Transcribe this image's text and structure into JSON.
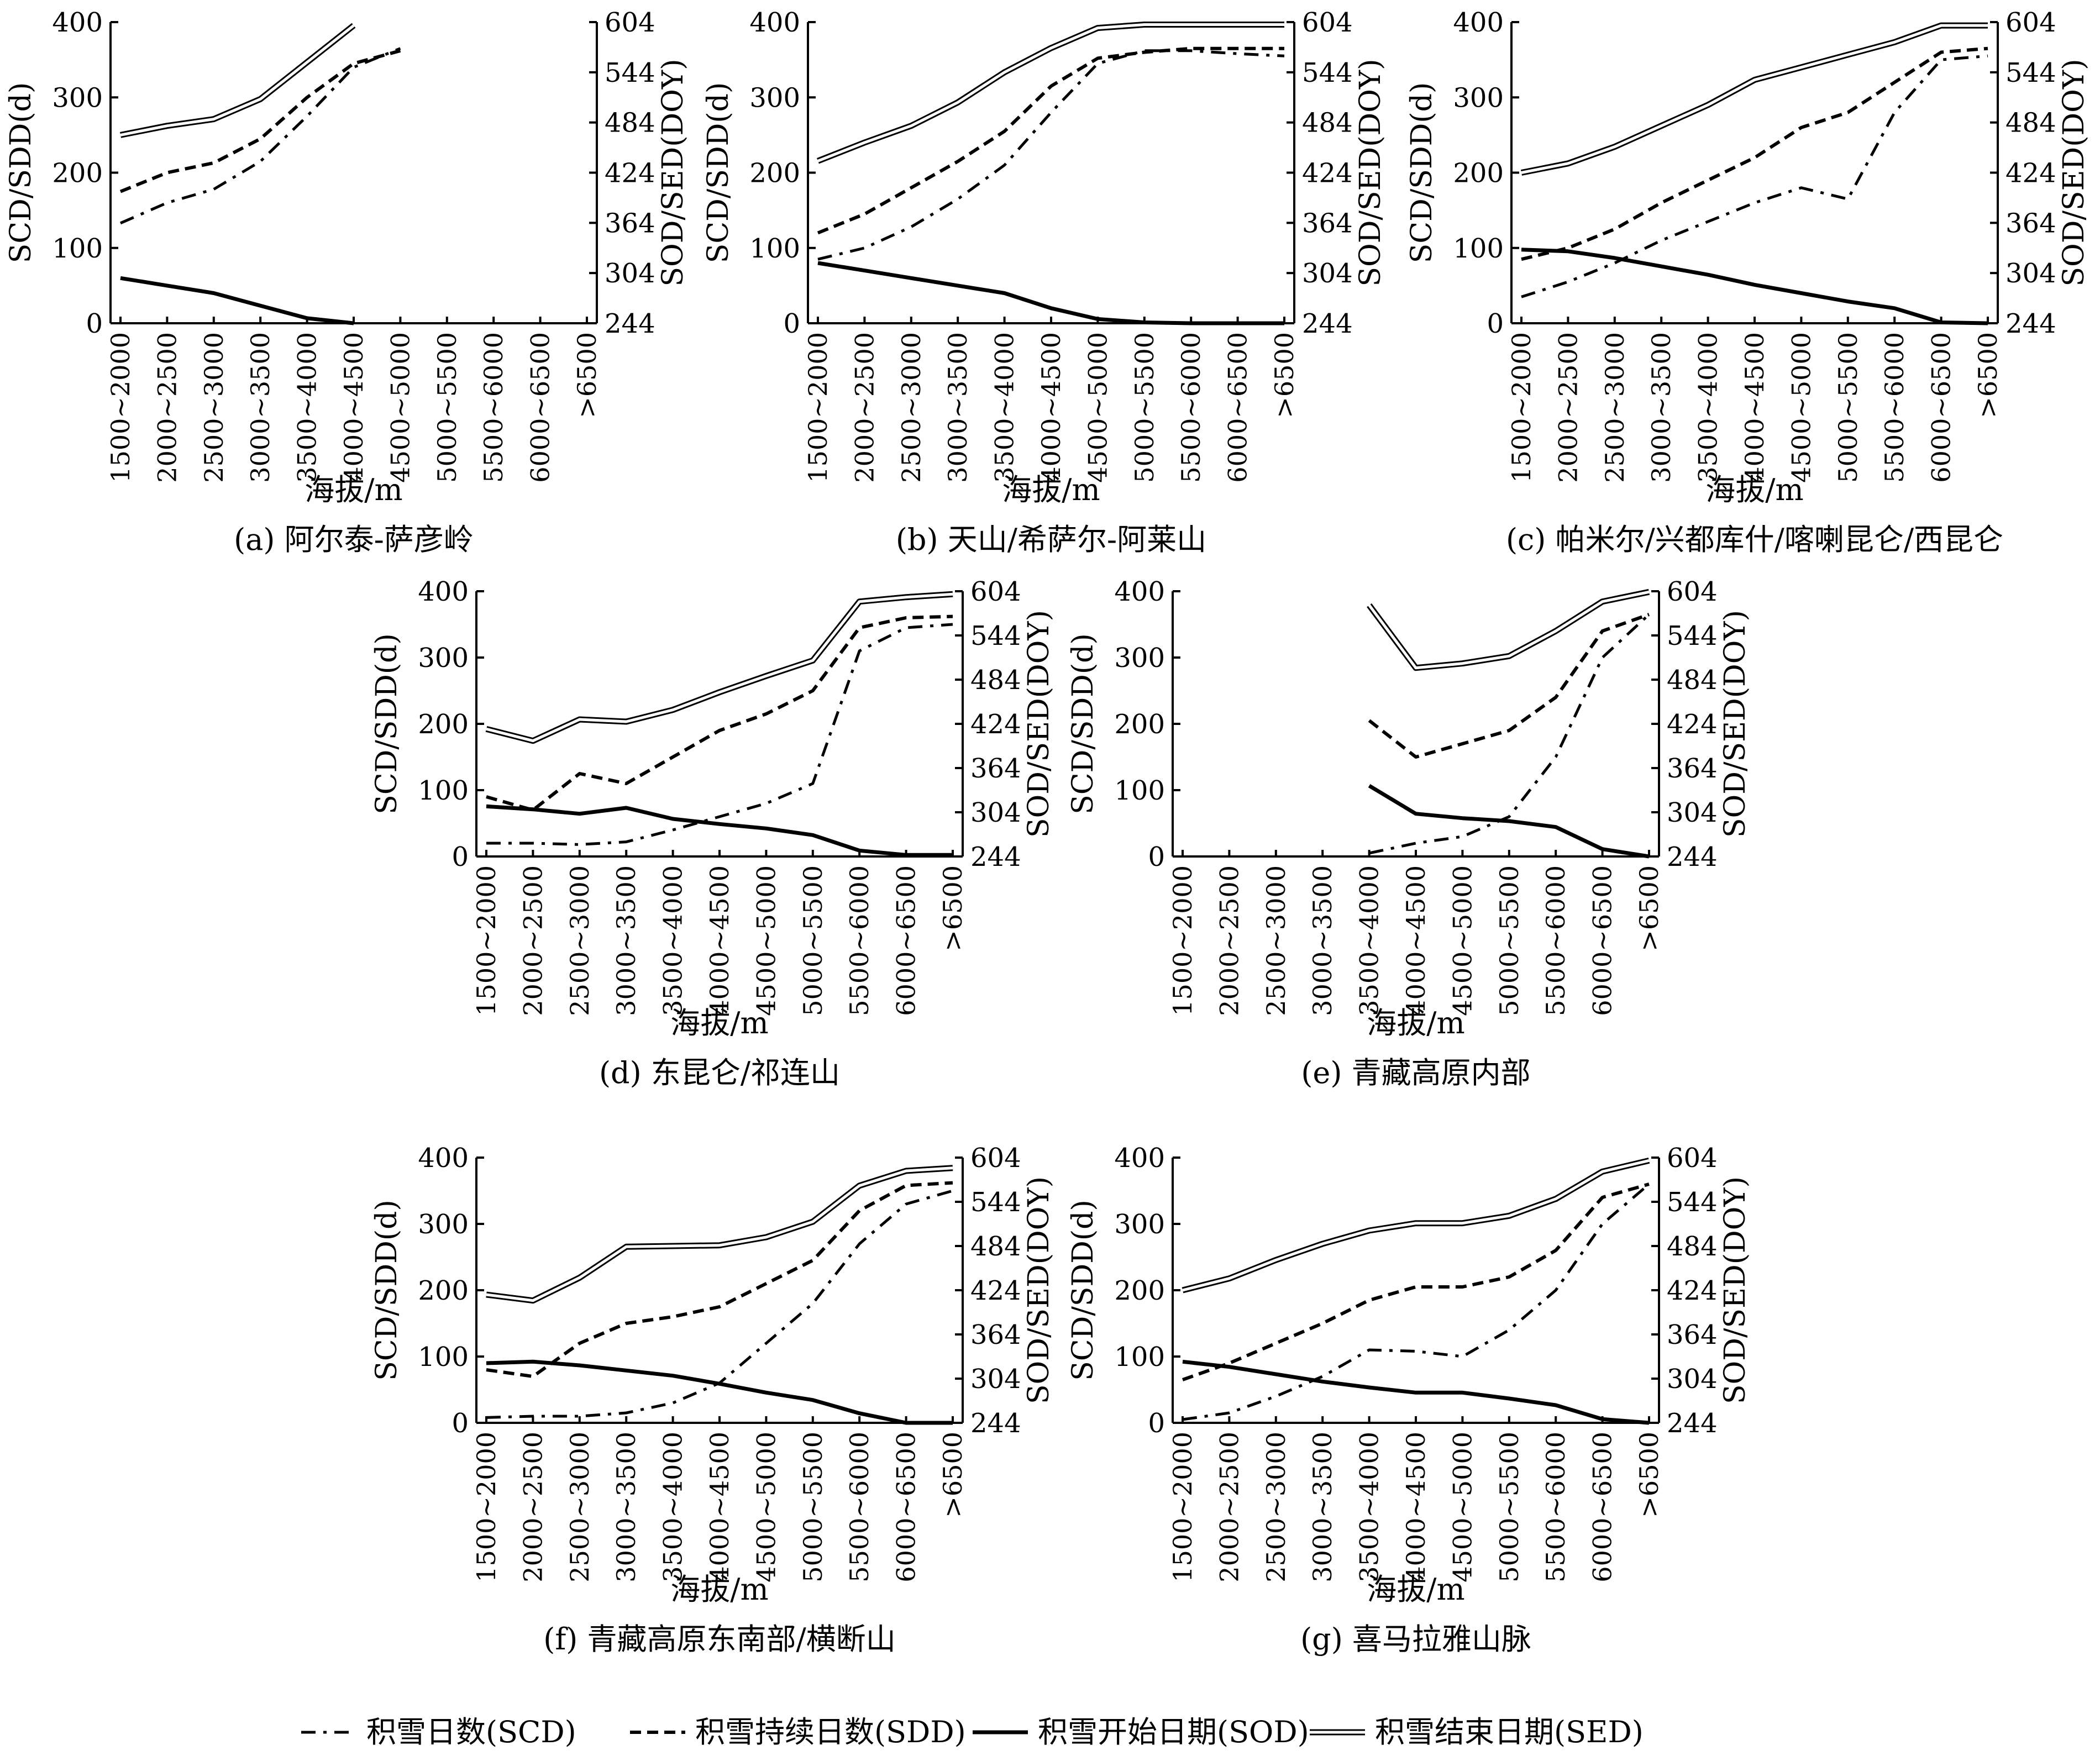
{
  "page": {
    "elevation_bins": [
      "1500~2000",
      "2000~2500",
      "2500~3000",
      "3000~3500",
      "3500~4000",
      "4000~4500",
      "4500~5000",
      "5000~5500",
      "5500~6000",
      "6000~6500",
      ">6500"
    ],
    "x_axis_label": "海拔/m",
    "y_left_label": "SCD/SDD(d)",
    "y_right_label": "SOD/SED(DOY)",
    "y_left_ticks": [
      "0",
      "100",
      "200",
      "300",
      "400"
    ],
    "y_right_ticks": [
      "244",
      "304",
      "364",
      "424",
      "484",
      "544",
      "604"
    ]
  },
  "legend": [
    {
      "key": "SCD",
      "label": "积雪日数(SCD)",
      "style": "dash-dot"
    },
    {
      "key": "SDD",
      "label": "积雪持续日数(SDD)",
      "style": "dashed"
    },
    {
      "key": "SOD",
      "label": "积雪开始日期(SOD)",
      "style": "solid-thick"
    },
    {
      "key": "SED",
      "label": "积雪结束日期(SED)",
      "style": "double-line"
    }
  ],
  "chart_data": [
    {
      "type": "line",
      "title": "(a) 阿尔泰-萨彦岭",
      "categories": [
        "1500~2000",
        "2000~2500",
        "2500~3000",
        "3000~3500",
        "3500~4000",
        "4000~4500",
        "4500~5000",
        "5000~5500",
        "5500~6000",
        "6000~6500",
        ">6500"
      ],
      "xlabel": "海拔/m",
      "ylabel_left": "SCD/SDD(d)",
      "ylim_left": [
        0,
        400
      ],
      "ylabel_right": "SOD/SED(DOY)",
      "ylim_right": [
        244,
        604
      ],
      "series": [
        {
          "name": "积雪日数(SCD)",
          "axis": "left",
          "values": [
            133,
            160,
            178,
            215,
            275,
            340,
            365,
            null,
            null,
            null,
            null
          ]
        },
        {
          "name": "积雪持续日数(SDD)",
          "axis": "left",
          "values": [
            175,
            200,
            213,
            245,
            300,
            345,
            362,
            null,
            null,
            null,
            null
          ]
        },
        {
          "name": "积雪开始日期(SOD)",
          "axis": "right",
          "values": [
            298,
            289,
            280,
            265,
            250,
            244,
            null,
            null,
            null,
            null,
            null
          ]
        },
        {
          "name": "积雪结束日期(SED)",
          "axis": "right",
          "values": [
            469,
            480,
            488,
            512,
            556,
            600,
            null,
            null,
            null,
            null,
            null
          ]
        }
      ]
    },
    {
      "type": "line",
      "title": "(b) 天山/希萨尔-阿莱山",
      "categories": [
        "1500~2000",
        "2000~2500",
        "2500~3000",
        "3000~3500",
        "3500~4000",
        "4000~4500",
        "4500~5000",
        "5000~5500",
        "5500~6000",
        "6000~6500",
        ">6500"
      ],
      "xlabel": "海拔/m",
      "ylabel_left": "SCD/SDD(d)",
      "ylim_left": [
        0,
        400
      ],
      "ylabel_right": "SOD/SED(DOY)",
      "ylim_right": [
        244,
        604
      ],
      "series": [
        {
          "name": "积雪日数(SCD)",
          "axis": "left",
          "values": [
            85,
            100,
            128,
            165,
            210,
            280,
            345,
            362,
            362,
            358,
            355
          ]
        },
        {
          "name": "积雪持续日数(SDD)",
          "axis": "left",
          "values": [
            120,
            145,
            180,
            215,
            255,
            315,
            352,
            360,
            365,
            365,
            365
          ]
        },
        {
          "name": "积雪开始日期(SOD)",
          "axis": "right",
          "values": [
            316,
            307,
            298,
            289,
            280,
            262,
            249,
            245,
            244,
            244,
            244
          ]
        },
        {
          "name": "积雪结束日期(SED)",
          "axis": "right",
          "values": [
            438,
            460,
            480,
            508,
            544,
            573,
            597,
            601,
            601,
            601,
            601
          ]
        }
      ]
    },
    {
      "type": "line",
      "title": "(c) 帕米尔/兴都库什/喀喇昆仑/西昆仑",
      "categories": [
        "1500~2000",
        "2000~2500",
        "2500~3000",
        "3000~3500",
        "3500~4000",
        "4000~4500",
        "4500~5000",
        "5000~5500",
        "5500~6000",
        "6000~6500",
        ">6500"
      ],
      "xlabel": "海拔/m",
      "ylabel_left": "SCD/SDD(d)",
      "ylim_left": [
        0,
        400
      ],
      "ylabel_right": "SOD/SED(DOY)",
      "ylim_right": [
        244,
        604
      ],
      "series": [
        {
          "name": "积雪日数(SCD)",
          "axis": "left",
          "values": [
            35,
            55,
            80,
            110,
            135,
            160,
            180,
            165,
            280,
            350,
            355
          ]
        },
        {
          "name": "积雪持续日数(SDD)",
          "axis": "left",
          "values": [
            85,
            100,
            125,
            160,
            190,
            220,
            260,
            280,
            320,
            360,
            365
          ]
        },
        {
          "name": "积雪开始日期(SOD)",
          "axis": "right",
          "values": [
            332,
            330,
            322,
            312,
            302,
            290,
            280,
            270,
            262,
            245,
            244
          ]
        },
        {
          "name": "积雪结束日期(SED)",
          "axis": "right",
          "values": [
            424,
            435,
            455,
            480,
            505,
            535,
            550,
            565,
            580,
            600,
            600
          ]
        }
      ]
    },
    {
      "type": "line",
      "title": "(d) 东昆仑/祁连山",
      "categories": [
        "1500~2000",
        "2000~2500",
        "2500~3000",
        "3000~3500",
        "3500~4000",
        "4000~4500",
        "4500~5000",
        "5000~5500",
        "5500~6000",
        "6000~6500",
        ">6500"
      ],
      "xlabel": "海拔/m",
      "ylabel_left": "SCD/SDD(d)",
      "ylim_left": [
        0,
        400
      ],
      "ylabel_right": "SOD/SED(DOY)",
      "ylim_right": [
        244,
        604
      ],
      "series": [
        {
          "name": "积雪日数(SCD)",
          "axis": "left",
          "values": [
            20,
            20,
            18,
            22,
            40,
            60,
            80,
            110,
            310,
            345,
            350
          ]
        },
        {
          "name": "积雪持续日数(SDD)",
          "axis": "left",
          "values": [
            90,
            70,
            125,
            110,
            150,
            190,
            215,
            250,
            345,
            360,
            362
          ]
        },
        {
          "name": "积雪开始日期(SOD)",
          "axis": "right",
          "values": [
            312,
            308,
            302,
            310,
            295,
            288,
            282,
            273,
            252,
            246,
            246
          ]
        },
        {
          "name": "积雪结束日期(SED)",
          "axis": "right",
          "values": [
            417,
            401,
            430,
            427,
            443,
            467,
            489,
            510,
            590,
            596,
            600
          ]
        }
      ]
    },
    {
      "type": "line",
      "title": "(e) 青藏高原内部",
      "categories": [
        "1500~2000",
        "2000~2500",
        "2500~3000",
        "3000~3500",
        "3500~4000",
        "4000~4500",
        "4500~5000",
        "5000~5500",
        "5500~6000",
        "6000~6500",
        ">6500"
      ],
      "xlabel": "海拔/m",
      "ylabel_left": "SCD/SDD(d)",
      "ylim_left": [
        0,
        400
      ],
      "ylabel_right": "SOD/SED(DOY)",
      "ylim_right": [
        244,
        604
      ],
      "series": [
        {
          "name": "积雪日数(SCD)",
          "axis": "left",
          "values": [
            null,
            null,
            null,
            null,
            5,
            20,
            30,
            60,
            150,
            300,
            365
          ]
        },
        {
          "name": "积雪持续日数(SDD)",
          "axis": "left",
          "values": [
            null,
            null,
            null,
            null,
            205,
            150,
            170,
            190,
            240,
            340,
            365
          ]
        },
        {
          "name": "积雪开始日期(SOD)",
          "axis": "right",
          "values": [
            null,
            null,
            null,
            null,
            340,
            302,
            296,
            292,
            284,
            254,
            244
          ]
        },
        {
          "name": "积雪结束日期(SED)",
          "axis": "right",
          "values": [
            null,
            null,
            null,
            null,
            585,
            500,
            506,
            516,
            550,
            590,
            603
          ]
        }
      ]
    },
    {
      "type": "line",
      "title": "(f) 青藏高原东南部/横断山",
      "categories": [
        "1500~2000",
        "2000~2500",
        "2500~3000",
        "3000~3500",
        "3500~4000",
        "4000~4500",
        "4500~5000",
        "5000~5500",
        "5500~6000",
        "6000~6500",
        ">6500"
      ],
      "xlabel": "海拔/m",
      "ylabel_left": "SCD/SDD(d)",
      "ylim_left": [
        0,
        400
      ],
      "ylabel_right": "SOD/SED(DOY)",
      "ylim_right": [
        244,
        604
      ],
      "series": [
        {
          "name": "积雪日数(SCD)",
          "axis": "left",
          "values": [
            8,
            10,
            10,
            15,
            30,
            60,
            120,
            180,
            270,
            330,
            350
          ]
        },
        {
          "name": "积雪持续日数(SDD)",
          "axis": "left",
          "values": [
            80,
            70,
            120,
            150,
            160,
            175,
            210,
            245,
            320,
            358,
            362
          ]
        },
        {
          "name": "积雪开始日期(SOD)",
          "axis": "right",
          "values": [
            325,
            327,
            322,
            315,
            308,
            297,
            285,
            275,
            257,
            244,
            244
          ]
        },
        {
          "name": "积雪结束日期(SED)",
          "axis": "right",
          "values": [
            418,
            410,
            441,
            483,
            484,
            485,
            496,
            517,
            566,
            586,
            590
          ]
        }
      ]
    },
    {
      "type": "line",
      "title": "(g) 喜马拉雅山脉",
      "categories": [
        "1500~2000",
        "2000~2500",
        "2500~3000",
        "3000~3500",
        "3500~4000",
        "4000~4500",
        "4500~5000",
        "5000~5500",
        "5500~6000",
        "6000~6500",
        ">6500"
      ],
      "xlabel": "海拔/m",
      "ylabel_left": "SCD/SDD(d)",
      "ylim_left": [
        0,
        400
      ],
      "ylabel_right": "SOD/SED(DOY)",
      "ylim_right": [
        244,
        604
      ],
      "series": [
        {
          "name": "积雪日数(SCD)",
          "axis": "left",
          "values": [
            5,
            15,
            40,
            70,
            110,
            108,
            100,
            140,
            200,
            300,
            360
          ]
        },
        {
          "name": "积雪持续日数(SDD)",
          "axis": "left",
          "values": [
            65,
            90,
            120,
            150,
            185,
            205,
            205,
            220,
            260,
            340,
            360
          ]
        },
        {
          "name": "积雪开始日期(SOD)",
          "axis": "right",
          "values": [
            327,
            320,
            310,
            300,
            292,
            285,
            285,
            277,
            268,
            249,
            244
          ]
        },
        {
          "name": "积雪结束日期(SED)",
          "axis": "right",
          "values": [
            424,
            440,
            465,
            487,
            505,
            515,
            515,
            525,
            548,
            585,
            600
          ]
        }
      ]
    }
  ]
}
